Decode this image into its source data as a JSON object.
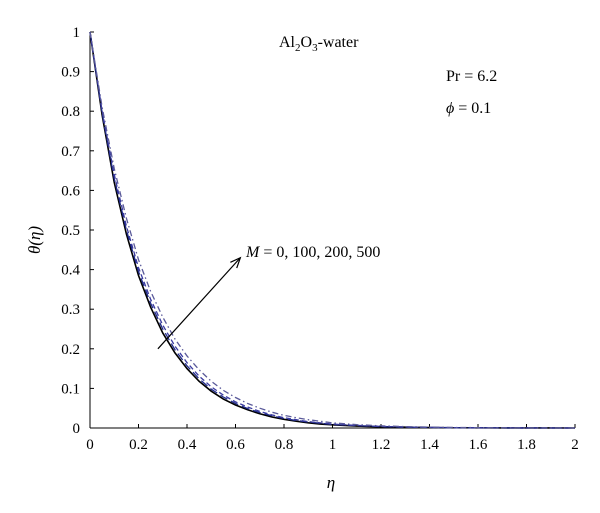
{
  "chart_data": {
    "type": "line",
    "title": "",
    "xlabel": "η",
    "ylabel": "θ(η)",
    "xlim": [
      0,
      2
    ],
    "ylim": [
      0,
      1
    ],
    "x_ticks": [
      "0",
      "0.2",
      "0.4",
      "0.6",
      "0.8",
      "1",
      "1.2",
      "1.4",
      "1.6",
      "1.8",
      "2"
    ],
    "y_ticks": [
      "0",
      "0.1",
      "0.2",
      "0.3",
      "0.4",
      "0.5",
      "0.6",
      "0.7",
      "0.8",
      "0.9",
      "1"
    ],
    "x": [
      0,
      0.05,
      0.1,
      0.15,
      0.2,
      0.25,
      0.3,
      0.35,
      0.4,
      0.45,
      0.5,
      0.55,
      0.6,
      0.65,
      0.7,
      0.75,
      0.8,
      0.85,
      0.9,
      0.95,
      1.0,
      1.1,
      1.2,
      1.3,
      1.4,
      1.5,
      1.6,
      1.7,
      1.8,
      1.9,
      2.0
    ],
    "series": [
      {
        "values": [
          1.0,
          0.79,
          0.62,
          0.49,
          0.385,
          0.305,
          0.24,
          0.19,
          0.15,
          0.118,
          0.093,
          0.073,
          0.058,
          0.046,
          0.036,
          0.028,
          0.022,
          0.017,
          0.013,
          0.01,
          0.008,
          0.005,
          0.003,
          0.002,
          0.001,
          0.0006,
          0.0004,
          0.0002,
          0.0001,
          5e-05,
          0.0
        ],
        "color": "#000000",
        "dash": "solid"
      },
      {
        "values": [
          1.0,
          0.795,
          0.63,
          0.5,
          0.395,
          0.315,
          0.25,
          0.198,
          0.157,
          0.124,
          0.098,
          0.078,
          0.062,
          0.049,
          0.039,
          0.031,
          0.024,
          0.019,
          0.015,
          0.012,
          0.009,
          0.006,
          0.0035,
          0.002,
          0.0012,
          0.0007,
          0.0004,
          0.0002,
          0.0001,
          5e-05,
          0.0
        ],
        "color": "#1f2a8a",
        "dash": "long-dash"
      },
      {
        "values": [
          1.0,
          0.8,
          0.64,
          0.51,
          0.405,
          0.325,
          0.26,
          0.207,
          0.165,
          0.131,
          0.104,
          0.083,
          0.066,
          0.053,
          0.042,
          0.033,
          0.026,
          0.021,
          0.016,
          0.013,
          0.01,
          0.0065,
          0.004,
          0.0025,
          0.0015,
          0.0009,
          0.0005,
          0.0003,
          0.0002,
          0.0001,
          0.0
        ],
        "color": "#3a3aa0",
        "dash": "dash"
      },
      {
        "values": [
          1.0,
          0.81,
          0.655,
          0.53,
          0.425,
          0.345,
          0.28,
          0.225,
          0.182,
          0.147,
          0.118,
          0.095,
          0.077,
          0.062,
          0.05,
          0.04,
          0.032,
          0.026,
          0.021,
          0.017,
          0.013,
          0.0085,
          0.0055,
          0.0035,
          0.0022,
          0.0014,
          0.0009,
          0.0005,
          0.0003,
          0.0002,
          0.0
        ],
        "color": "#5a5a9a",
        "dash": "dash-dot"
      }
    ],
    "annotations": {
      "fluid_main": "Al",
      "fluid_sub1": "2",
      "fluid_mid": "O",
      "fluid_sub2": "3",
      "fluid_tail": "-water",
      "pr": "Pr = 6.2",
      "phi_symbol": "ϕ",
      "phi_value": " = 0.1",
      "m_symbol": "M",
      "m_values": " = 0, 100, 200, 500"
    },
    "arrow_from": [
      0.28,
      0.2
    ],
    "arrow_to": [
      0.62,
      0.43
    ],
    "grid": false,
    "legend": "none"
  }
}
